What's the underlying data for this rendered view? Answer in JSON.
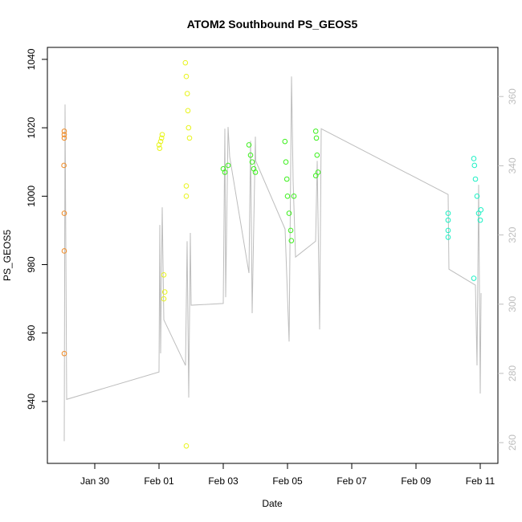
{
  "chart_data": {
    "type": "scatter",
    "title": "ATOM2 Southbound PS_GEOS5",
    "x_label": "Date",
    "y_label": "PS_GEOS5",
    "xlim": [
      28.525,
      42.55
    ],
    "xticks": [
      {
        "value": 30,
        "label": "Jan 30"
      },
      {
        "value": 32,
        "label": "Feb 01"
      },
      {
        "value": 34,
        "label": "Feb 03"
      },
      {
        "value": 36,
        "label": "Feb 05"
      },
      {
        "value": 38,
        "label": "Feb 07"
      },
      {
        "value": 40,
        "label": "Feb 09"
      },
      {
        "value": 42,
        "label": "Feb 11"
      }
    ],
    "ylim": [
      921.9,
      1043.5
    ],
    "yticks": [
      940,
      960,
      980,
      1000,
      1020,
      1040
    ],
    "y2lim": [
      254,
      374.2
    ],
    "y2ticks": [
      260,
      280,
      300,
      320,
      340,
      360
    ],
    "series": [
      {
        "color": "#f08a24",
        "x": [
          29.05,
          29.05,
          29.05,
          29.04,
          29.05,
          29.05,
          29.05
        ],
        "values": [
          1019,
          1018,
          1017,
          1009,
          995,
          984,
          954
        ]
      },
      {
        "color": "#e8f41c",
        "x": [
          32.0,
          32.02,
          32.05,
          32.08,
          32.1,
          32.15,
          32.18,
          32.15,
          32.82,
          32.85,
          32.88,
          32.9,
          32.92,
          32.95,
          32.85,
          32.85,
          32.85
        ],
        "values": [
          1015,
          1014,
          1016,
          1017,
          1018,
          977,
          972,
          970,
          1039,
          1035,
          1030,
          1025,
          1020,
          1017,
          1003,
          1000,
          927
        ]
      },
      {
        "color": "#3cf01c",
        "x": [
          34.0,
          34.05,
          34.15,
          34.8,
          34.85,
          34.9,
          34.95,
          35.0,
          35.92,
          35.95,
          35.98,
          36.0,
          36.05,
          36.1,
          36.12,
          36.2,
          36.88,
          36.9,
          36.92,
          36.95,
          36.88
        ],
        "values": [
          1008,
          1007,
          1009,
          1015,
          1012,
          1010,
          1008,
          1007,
          1016,
          1010,
          1005,
          1000,
          995,
          990,
          987,
          1000,
          1019,
          1017,
          1012,
          1007,
          1006
        ]
      },
      {
        "color": "#1cf0c4",
        "x": [
          41.0,
          41.0,
          41.0,
          41.0,
          41.8,
          41.82,
          41.85,
          41.9,
          41.95,
          42.0,
          42.02,
          41.8
        ],
        "values": [
          995,
          993,
          990,
          988,
          1011,
          1009,
          1005,
          1000,
          995,
          993,
          996,
          976
        ]
      }
    ],
    "line": {
      "axis": "y2",
      "color": "#bdbdbd",
      "x": [
        29.05,
        29.075,
        29.125,
        32.0,
        32.025,
        32.05,
        32.1,
        32.15,
        32.825,
        32.875,
        32.925,
        32.975,
        33.0,
        34.0,
        34.05,
        34.075,
        34.15,
        34.2,
        34.8,
        34.85,
        34.9,
        35.0,
        35.01,
        35.925,
        36.05,
        36.125,
        36.175,
        36.25,
        36.875,
        36.925,
        37.0,
        37.05,
        41.0,
        41.025,
        41.85,
        41.9,
        41.95,
        42.0,
        42.025
      ],
      "values": [
        260.4,
        357.7,
        272.5,
        280.4,
        322.9,
        285.8,
        328,
        295.5,
        282.3,
        318.2,
        273,
        320.6,
        299.7,
        300.2,
        350.7,
        302,
        351.2,
        342.6,
        309,
        347.2,
        297.4,
        348.4,
        341.4,
        321.7,
        289.2,
        365.8,
        335.6,
        313.6,
        318.2,
        341.4,
        292.7,
        350.7,
        331.7,
        310.1,
        305.5,
        282.3,
        334.5,
        274.2,
        303.2
      ]
    }
  }
}
